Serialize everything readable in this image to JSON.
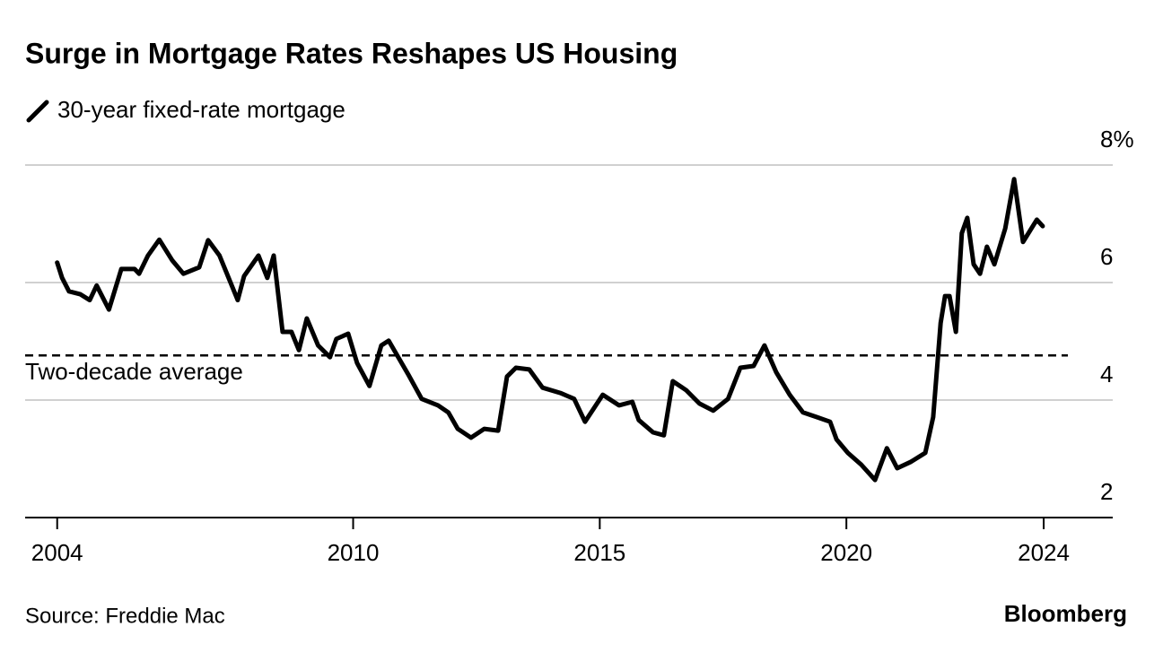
{
  "chart_data": {
    "type": "line",
    "title": "Surge in Mortgage Rates Reshapes US Housing",
    "source": "Source: Freddie Mac",
    "brand": "Bloomberg",
    "x": [
      2004.0,
      2004.1,
      2004.24,
      2004.47,
      2004.66,
      2004.8,
      2005.05,
      2005.3,
      2005.57,
      2005.66,
      2005.84,
      2006.07,
      2006.33,
      2006.56,
      2006.88,
      2007.06,
      2007.29,
      2007.66,
      2007.79,
      2008.08,
      2008.26,
      2008.39,
      2008.57,
      2008.75,
      2008.9,
      2009.06,
      2009.29,
      2009.53,
      2009.66,
      2009.9,
      2010.08,
      2010.33,
      2010.57,
      2010.72,
      2011.12,
      2011.39,
      2011.72,
      2011.93,
      2012.12,
      2012.39,
      2012.66,
      2012.94,
      2013.12,
      2013.3,
      2013.57,
      2013.84,
      2014.2,
      2014.48,
      2014.7,
      2015.06,
      2015.39,
      2015.66,
      2015.79,
      2016.08,
      2016.3,
      2016.48,
      2016.75,
      2017.02,
      2017.3,
      2017.6,
      2017.85,
      2018.12,
      2018.34,
      2018.58,
      2018.85,
      2019.12,
      2019.4,
      2019.67,
      2019.8,
      2020.03,
      2020.3,
      2020.58,
      2020.82,
      2021.03,
      2021.31,
      2021.6,
      2021.76,
      2021.91,
      2022.0,
      2022.09,
      2022.22,
      2022.34,
      2022.45,
      2022.58,
      2022.71,
      2022.85,
      2023.0,
      2023.22,
      2023.4,
      2023.58,
      2023.86,
      2023.98
    ],
    "series": [
      {
        "name": "30-year fixed-rate mortgage",
        "color": "#000000",
        "values": [
          6.34,
          6.08,
          5.85,
          5.8,
          5.7,
          5.95,
          5.54,
          6.23,
          6.23,
          6.15,
          6.46,
          6.73,
          6.38,
          6.15,
          6.26,
          6.72,
          6.46,
          5.7,
          6.11,
          6.46,
          6.08,
          6.46,
          5.16,
          5.16,
          4.85,
          5.39,
          4.93,
          4.73,
          5.04,
          5.13,
          4.63,
          4.24,
          4.93,
          5.01,
          4.43,
          4.02,
          3.91,
          3.79,
          3.51,
          3.36,
          3.51,
          3.48,
          4.4,
          4.55,
          4.52,
          4.21,
          4.12,
          4.02,
          3.63,
          4.09,
          3.91,
          3.97,
          3.66,
          3.45,
          3.4,
          4.32,
          4.17,
          3.94,
          3.82,
          4.02,
          4.55,
          4.58,
          4.93,
          4.47,
          4.09,
          3.79,
          3.71,
          3.63,
          3.33,
          3.1,
          2.9,
          2.64,
          3.18,
          2.84,
          2.95,
          3.1,
          3.71,
          5.31,
          5.77,
          5.77,
          5.16,
          6.84,
          7.1,
          6.31,
          6.15,
          6.61,
          6.31,
          6.92,
          7.76,
          6.69,
          7.07,
          6.96
        ]
      }
    ],
    "average": {
      "label": "Two-decade average",
      "value": 4.76
    },
    "xlim": [
      2003.35,
      2025.4
    ],
    "xticks": [
      2004,
      2010,
      2015,
      2020,
      2024
    ],
    "ylim": [
      2,
      8
    ],
    "yticks": [
      2,
      4,
      6,
      {
        "value": 8,
        "label": "8%"
      }
    ],
    "grid": true
  }
}
